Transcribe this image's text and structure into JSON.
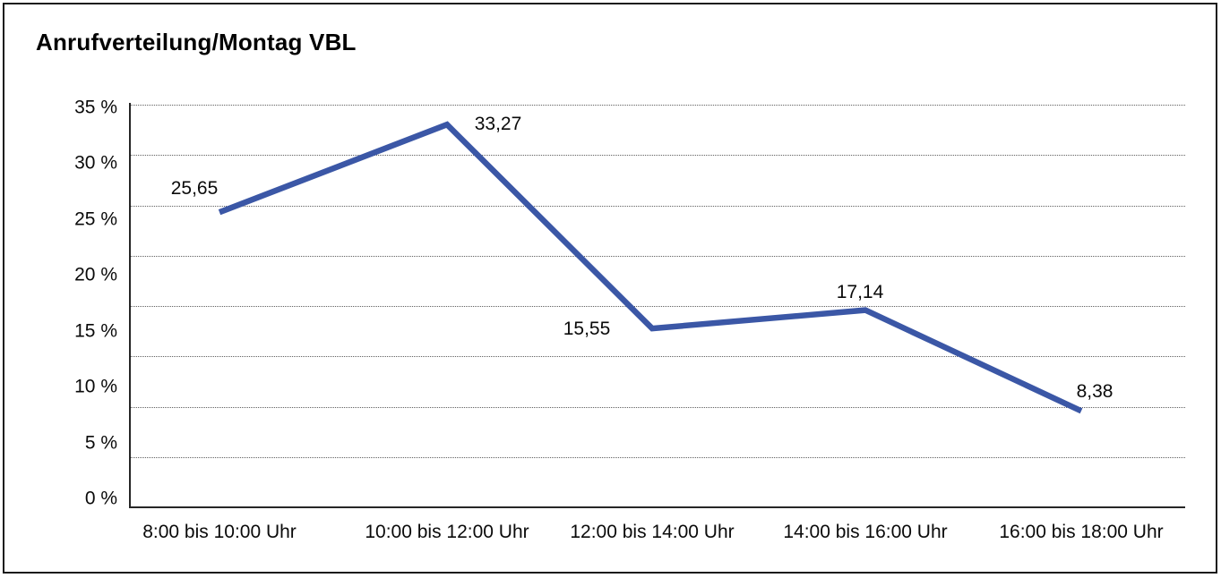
{
  "chart_data": {
    "type": "line",
    "title": "Anrufverteilung/Montag VBL",
    "categories": [
      "8:00 bis 10:00 Uhr",
      "10:00 bis 12:00 Uhr",
      "12:00 bis 14:00 Uhr",
      "14:00 bis 16:00 Uhr",
      "16:00 bis 18:00 Uhr"
    ],
    "values": [
      25.65,
      33.27,
      15.55,
      17.14,
      8.38
    ],
    "point_labels": [
      "25,65",
      "33,27",
      "15,55",
      "17,14",
      "8,38"
    ],
    "y_ticks": [
      "35 %",
      "30 %",
      "25 %",
      "20 %",
      "15 %",
      "10 %",
      "5 %",
      "0 %"
    ],
    "y_tick_values": [
      35,
      30,
      25,
      20,
      15,
      10,
      5,
      0
    ],
    "ylim": [
      0,
      35
    ],
    "xlabel": "",
    "ylabel": "",
    "grid": "horizontal-dotted",
    "grid_divisions": 8,
    "legend": "none",
    "line_color": "#3B57A6",
    "text_color": "#0a0a0a"
  }
}
